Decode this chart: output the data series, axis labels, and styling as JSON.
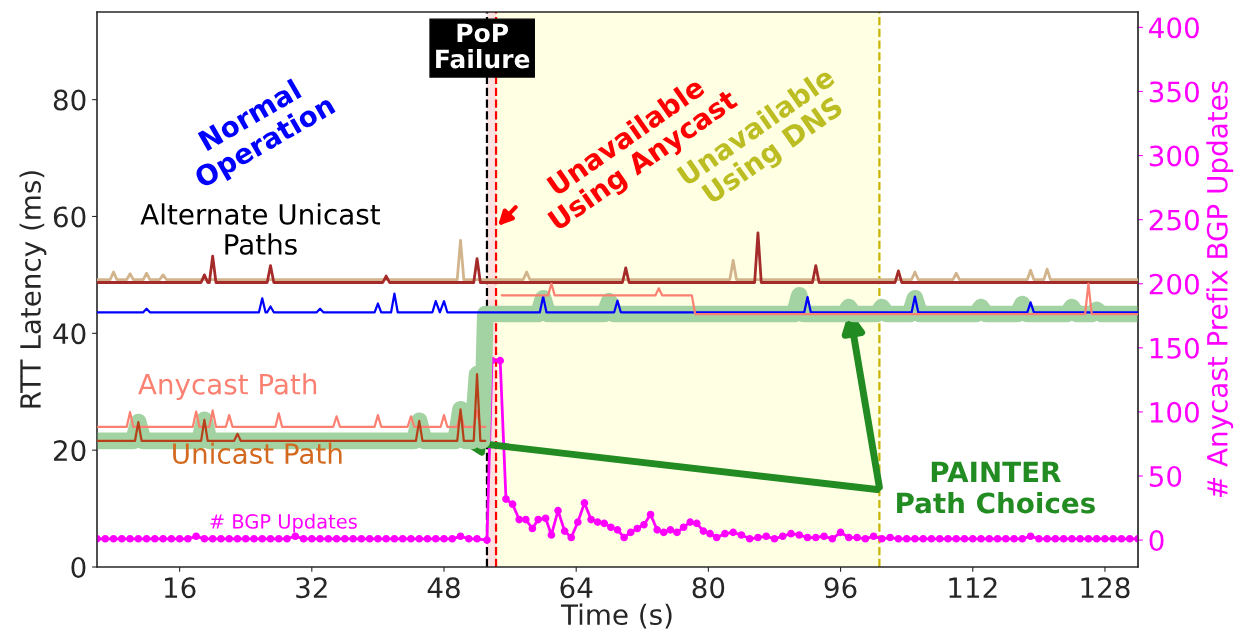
{
  "chart_data": {
    "type": "line",
    "xlabel": "Time (s)",
    "ylabel": "RTT Latency (ms)",
    "y2label": "# Anycast Prefix BGP Updates",
    "xlim": [
      6,
      132
    ],
    "xticks": [
      16,
      32,
      48,
      64,
      80,
      96,
      112,
      128
    ],
    "ylim": [
      0,
      95
    ],
    "yticks": [
      0,
      20,
      40,
      60,
      80
    ],
    "y2lim": [
      -21,
      412
    ],
    "y2ticks": [
      0,
      50,
      100,
      150,
      200,
      250,
      300,
      350,
      400
    ],
    "grid": false,
    "legend": false,
    "series": [
      {
        "name": "PAINTER\nPath Choices",
        "color": "#a3d3a3",
        "x": [
          6,
          10.4,
          11,
          11.6,
          18.4,
          19,
          19.6,
          44.4,
          45,
          45.6,
          49.4,
          50,
          50.6,
          51.4,
          52,
          52.6,
          53,
          59.4,
          60,
          60.6,
          67.4,
          68,
          68.6,
          90.4,
          91,
          91.6,
          96.4,
          97,
          97.6,
          100.4,
          101,
          101.6,
          104.4,
          105,
          105.6,
          112.4,
          113,
          113.6,
          117.4,
          118,
          118.6,
          123.4,
          124,
          124.6,
          126.4,
          127,
          127.6,
          132
        ],
        "values": [
          21.6,
          21.6,
          24.8,
          21.6,
          21.6,
          25.2,
          21.6,
          21.6,
          25.0,
          21.6,
          21.6,
          27.0,
          21.6,
          21.6,
          33.0,
          21.6,
          43.3,
          43.3,
          46.0,
          43.3,
          43.3,
          45.5,
          43.3,
          43.3,
          46.5,
          43.3,
          43.3,
          44.5,
          43.3,
          43.3,
          44.5,
          43.3,
          43.3,
          46.0,
          43.3,
          43.3,
          44.5,
          43.3,
          43.3,
          45.0,
          43.3,
          43.3,
          44.5,
          43.3,
          43.3,
          44.0,
          43.3,
          43.3
        ]
      },
      {
        "color": "#d2b48c",
        "x": [
          6,
          7.6,
          8,
          8.4,
          9.6,
          10,
          10.4,
          11.6,
          12,
          12.4,
          13.6,
          14,
          14.4,
          49.6,
          50,
          50.4,
          57.6,
          58,
          58.4,
          82.6,
          83,
          83.4,
          104.6,
          105,
          105.4,
          109.6,
          110,
          110.4,
          118.6,
          119,
          119.4,
          120.6,
          121,
          121.4,
          132
        ],
        "values": [
          49.2,
          49.2,
          50.5,
          49.2,
          49.2,
          50.2,
          49.2,
          49.2,
          50.3,
          49.2,
          49.2,
          50.0,
          49.2,
          49.2,
          55.9,
          49.2,
          49.2,
          50.5,
          49.2,
          49.2,
          52.5,
          49.2,
          49.2,
          50.5,
          49.2,
          49.2,
          50.3,
          49.2,
          49.2,
          50.8,
          49.2,
          49.2,
          51.0,
          49.2,
          49.2
        ]
      },
      {
        "color": "#a52a2a",
        "x": [
          6,
          18.6,
          19,
          19.4,
          19.6,
          20,
          20.4,
          26.6,
          27,
          27.4,
          40.6,
          41,
          41.4,
          51.6,
          52,
          52.4,
          69.6,
          70,
          70.4,
          85.6,
          86,
          86.4,
          92.6,
          93,
          93.4,
          102.6,
          103,
          103.4,
          132
        ],
        "values": [
          48.7,
          48.7,
          50.0,
          48.7,
          48.7,
          53.2,
          48.7,
          48.7,
          51.6,
          48.7,
          48.7,
          49.8,
          48.7,
          48.7,
          52.8,
          48.7,
          48.7,
          51.2,
          48.7,
          48.7,
          57.2,
          48.7,
          48.7,
          51.6,
          48.7,
          48.7,
          50.7,
          48.7,
          48.7
        ]
      },
      {
        "color": "#0000ff",
        "x": [
          6,
          11.6,
          12,
          12.4,
          25.6,
          26,
          26.4,
          26.6,
          27,
          27.4,
          32.6,
          33,
          33.4,
          39.6,
          40,
          40.4,
          41.6,
          42,
          42.4,
          46.6,
          47,
          47.5,
          48,
          48.4,
          59.6,
          60,
          60.4,
          68.6,
          69,
          69.4,
          91.6,
          92,
          92.4,
          104.6,
          105,
          105.4,
          118.6,
          119,
          119.4,
          132
        ],
        "values": [
          43.6,
          43.6,
          44.2,
          43.6,
          43.6,
          46.0,
          43.6,
          43.6,
          44.6,
          43.6,
          43.6,
          44.2,
          43.6,
          43.6,
          45.1,
          43.6,
          43.6,
          46.8,
          43.6,
          43.6,
          45.5,
          43.6,
          45.5,
          43.6,
          43.6,
          46.3,
          43.6,
          43.6,
          45.6,
          43.6,
          43.6,
          46.2,
          43.6,
          43.6,
          46.3,
          43.6,
          43.6,
          45.3,
          43.6,
          43.6
        ]
      },
      {
        "name": "Anycast Path",
        "color": "#fa8072",
        "x": [
          6,
          9.6,
          10,
          10.4,
          17.6,
          18,
          18.4,
          19.6,
          20,
          20.4,
          21.6,
          22,
          22.4,
          27.6,
          28,
          28.4,
          34.6,
          35,
          35.4,
          39.6,
          40,
          40.4,
          43.6,
          44,
          44.4,
          47.6,
          48,
          48.4,
          49.6,
          50,
          50.4,
          51.6,
          52,
          52.4,
          53,
          54,
          55,
          60.6,
          61,
          61.4,
          73.6,
          74,
          74.4,
          78,
          78.4,
          125.6,
          126,
          126.4,
          132
        ],
        "values": [
          24.0,
          24.0,
          26.5,
          24.0,
          24.0,
          26.6,
          24.0,
          24.0,
          26.8,
          24.0,
          24.0,
          26.0,
          24.0,
          24.0,
          26.3,
          24.0,
          24.0,
          25.8,
          24.0,
          24.0,
          26.0,
          24.0,
          24.0,
          25.8,
          24.0,
          24.0,
          26.0,
          24.0,
          24.0,
          26.5,
          24.0,
          24.0,
          26.8,
          24.0,
          24.0,
          null,
          46.5,
          46.5,
          48.5,
          46.5,
          46.5,
          47.7,
          46.5,
          46.5,
          43.3,
          43.3,
          48.5,
          43.3,
          43.3
        ]
      },
      {
        "name": "Unicast Path",
        "color": "#b5401a",
        "x": [
          6,
          10.6,
          11,
          11.4,
          18.6,
          19,
          19.4,
          22.6,
          23,
          23.4,
          44.6,
          45,
          45.4,
          49.6,
          50,
          50.4,
          51.6,
          52,
          52.4,
          53
        ],
        "values": [
          21.6,
          21.6,
          24.8,
          21.6,
          21.6,
          25.2,
          21.6,
          21.6,
          22.8,
          21.6,
          21.6,
          25.0,
          21.6,
          21.6,
          27.0,
          21.6,
          21.6,
          33.0,
          21.6,
          21.6
        ]
      },
      {
        "name": "# BGP Updates",
        "color": "#ff00ff",
        "axis": "y2",
        "marker": "circle",
        "x": [
          6,
          7,
          8,
          9,
          10,
          11,
          12,
          13,
          14,
          15,
          16,
          17,
          18,
          19,
          20,
          21,
          22,
          23,
          24,
          25,
          26,
          27,
          28,
          29,
          30,
          31,
          32,
          33,
          34,
          35,
          36,
          37,
          38,
          39,
          40,
          41,
          42,
          43,
          44,
          45,
          46,
          47,
          48,
          49,
          50,
          51,
          52,
          53.2,
          53.8,
          54.8,
          55.5,
          56.3,
          57.1,
          57.9,
          58.7,
          59.4,
          60.3,
          61,
          61.8,
          62.6,
          63.4,
          64.2,
          65,
          65.8,
          66.6,
          67.4,
          68.2,
          69,
          69.8,
          70.6,
          71.4,
          72.2,
          73,
          73.8,
          74.6,
          75.4,
          76.2,
          77,
          77.8,
          78.6,
          79.4,
          80.2,
          81,
          82,
          83,
          84,
          85,
          86,
          87,
          88,
          89,
          90,
          91,
          92,
          93,
          94,
          95,
          96,
          97,
          98,
          99,
          100,
          101,
          102,
          103,
          104,
          105,
          106,
          107,
          108,
          109,
          110,
          111,
          112,
          113,
          114,
          115,
          116,
          117,
          118,
          119,
          120,
          121,
          122,
          123,
          124,
          125,
          126,
          127,
          128,
          129,
          130,
          131,
          132
        ],
        "values": [
          1,
          1,
          1,
          1,
          1,
          1,
          1,
          1,
          1,
          1,
          1,
          1,
          3,
          1,
          1,
          1,
          1,
          1,
          1,
          1,
          1,
          1,
          1,
          1,
          3,
          1,
          1,
          1,
          1,
          1,
          1,
          1,
          1,
          1,
          1,
          1,
          1,
          1,
          1,
          1,
          1,
          1,
          1,
          1,
          3,
          1,
          1,
          0,
          140,
          140,
          32,
          28,
          16,
          16,
          9,
          16,
          17,
          4,
          23,
          7,
          2,
          14,
          29,
          16,
          14,
          13,
          10,
          8,
          2,
          6,
          9,
          12,
          20,
          8,
          6,
          8,
          6,
          10,
          14,
          13,
          7,
          5,
          2,
          5,
          6,
          4,
          1,
          2,
          3,
          1,
          3,
          5,
          4,
          2,
          2,
          3,
          1,
          6,
          2,
          2,
          1,
          3,
          1,
          2,
          1,
          1,
          1,
          1,
          1,
          1,
          1,
          1,
          1,
          1,
          1,
          1,
          1,
          1,
          1,
          1,
          3,
          1,
          1,
          1,
          1,
          1,
          1,
          1,
          1,
          1,
          1,
          1,
          1,
          1
        ]
      }
    ],
    "ref_lines": [
      {
        "axis": "x",
        "value": 53.2,
        "label": "PoP\nFailure",
        "color": "#000000",
        "line_style": "dashed"
      },
      {
        "axis": "x",
        "value": 54.3,
        "label": "Unavailable\nUsing Anycast",
        "color": "#ff0000",
        "line_style": "dashed"
      },
      {
        "axis": "x",
        "value": 100.7,
        "color": "#c8b400",
        "line_style": "dashed"
      }
    ],
    "bands": [
      {
        "axis": "x",
        "from": 53.2,
        "to": 54.3,
        "color": "#fde2e2"
      },
      {
        "axis": "x",
        "from": 54.3,
        "to": 100.7,
        "label": "Unavailable\nUsing DNS",
        "color": "#ffffe3"
      }
    ],
    "annotations": [
      "Normal\nOperation",
      "Alternate Unicast\nPaths"
    ]
  }
}
